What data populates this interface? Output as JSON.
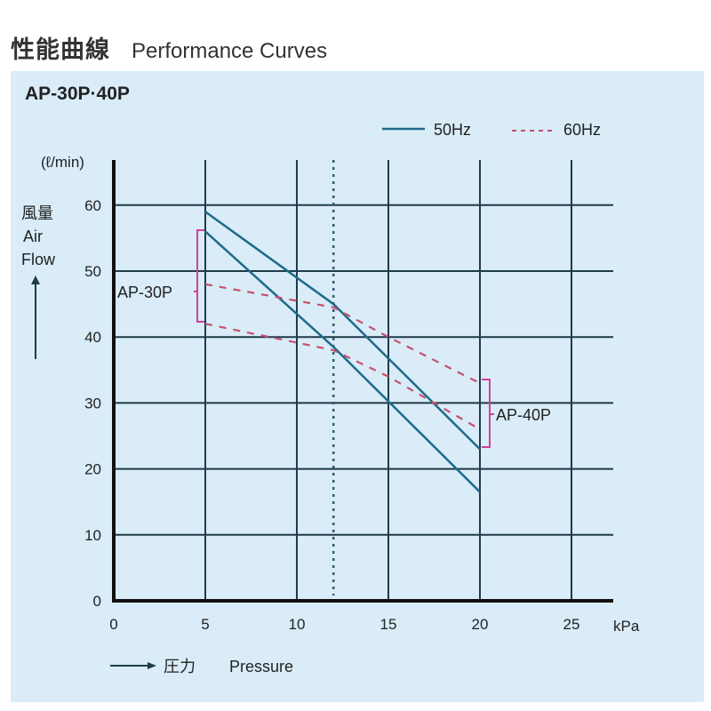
{
  "header": {
    "title_jp": "性能曲線",
    "title_en": "Performance Curves",
    "model": "AP-30P·40P"
  },
  "legend": {
    "solid_label": "50Hz",
    "dashed_label": "60Hz"
  },
  "axes": {
    "y_unit": "(ℓ/min)",
    "y_label_jp": "風量",
    "y_label_en_1": "Air",
    "y_label_en_2": "Flow",
    "x_unit": "kPa",
    "x_label_jp": "圧力",
    "x_label_en": "Pressure",
    "x_ticks": [
      "0",
      "5",
      "10",
      "15",
      "20",
      "25"
    ],
    "y_ticks": [
      "0",
      "10",
      "20",
      "30",
      "40",
      "50",
      "60"
    ]
  },
  "annotations": {
    "ap30p": "AP-30P",
    "ap40p": "AP-40P"
  },
  "colors": {
    "background": "#d9ecf8",
    "grid": "#1f3a4a",
    "solid": "#1e6a8a",
    "dashed": "#c8506e",
    "bracket": "#d0409a"
  },
  "chart_data": {
    "type": "line",
    "title": "Performance Curves (性能曲線) AP-30P·40P",
    "xlabel": "Pressure (kPa)",
    "ylabel": "Air Flow (ℓ/min)",
    "xlim": [
      0,
      27
    ],
    "ylim": [
      0,
      65
    ],
    "grid": true,
    "legend_position": "top-right",
    "reference_line_x": 12,
    "series": [
      {
        "name": "AP-40P 50Hz",
        "style": "solid",
        "x": [
          5,
          12,
          20
        ],
        "y": [
          59,
          45,
          23
        ]
      },
      {
        "name": "AP-30P 50Hz",
        "style": "solid",
        "x": [
          5,
          12,
          20
        ],
        "y": [
          56,
          38.5,
          16.5
        ]
      },
      {
        "name": "AP-40P 60Hz",
        "style": "dashed",
        "x": [
          5,
          12,
          15,
          20
        ],
        "y": [
          48,
          44.5,
          40,
          33
        ]
      },
      {
        "name": "AP-30P 60Hz",
        "style": "dashed",
        "x": [
          5,
          12,
          15,
          20
        ],
        "y": [
          42,
          38,
          34,
          26
        ]
      }
    ]
  }
}
